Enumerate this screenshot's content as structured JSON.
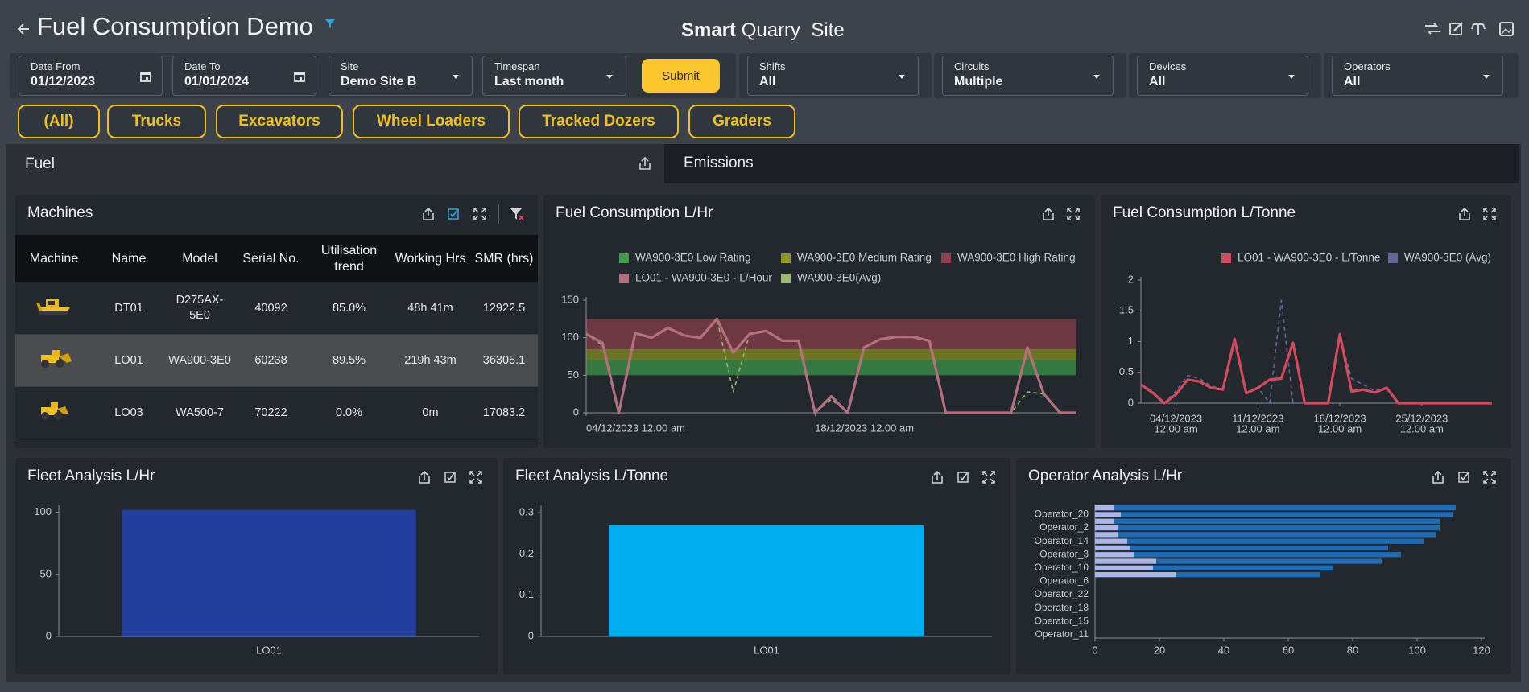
{
  "header": {
    "title": "Fuel Consumption Demo",
    "brand": [
      "Smart",
      "Quarry",
      "Site"
    ]
  },
  "filters": [
    {
      "label": "Date From",
      "value": "01/12/2023"
    },
    {
      "label": "Date To",
      "value": "01/01/2024"
    },
    {
      "label": "Site",
      "value": "Demo Site B"
    },
    {
      "label": "Timespan",
      "value": "Last month"
    },
    {
      "label": "Shifts",
      "value": "All"
    },
    {
      "label": "Circuits",
      "value": "Multiple"
    },
    {
      "label": "Devices",
      "value": "All"
    },
    {
      "label": "Operators",
      "value": "All"
    }
  ],
  "submit": "Submit",
  "machine_types": [
    "(All)",
    "Trucks",
    "Excavators",
    "Wheel Loaders",
    "Tracked Dozers",
    "Graders"
  ],
  "tabs": [
    "Fuel",
    "Emissions"
  ],
  "machines": {
    "title": "Machines",
    "columns": [
      "Machine",
      "Name",
      "Model",
      "Serial No.",
      "Utilisation trend",
      "Working Hrs",
      "SMR (hrs)"
    ],
    "rows": [
      [
        "DT01",
        "D275AX-5E0",
        "40092",
        "85.0%",
        "48h 41m",
        "12922.5"
      ],
      [
        "LO01",
        "WA900-3E0",
        "60238",
        "89.5%",
        "219h 43m",
        "36305.1"
      ],
      [
        "LO03",
        "WA500-7",
        "70222",
        "0.0%",
        "0m",
        "17083.2"
      ]
    ]
  },
  "chart_data": [
    {
      "type": "line",
      "title": "Fuel Consumption L/Hr",
      "x": [
        "2023-12-04T00:00",
        "2023-12-05T00:00",
        "2023-12-06T00:00",
        "2023-12-07T00:00",
        "2023-12-08T00:00",
        "2023-12-09T00:00",
        "2023-12-10T00:00",
        "2023-12-11T00:00",
        "2023-12-12T00:00",
        "2023-12-13T00:00",
        "2023-12-14T00:00",
        "2023-12-15T00:00",
        "2023-12-16T00:00",
        "2023-12-17T00:00",
        "2023-12-18T00:00",
        "2023-12-19T00:00",
        "2023-12-20T00:00",
        "2023-12-21T00:00",
        "2023-12-22T00:00",
        "2023-12-23T00:00",
        "2023-12-24T00:00",
        "2023-12-25T00:00",
        "2023-12-26T00:00",
        "2023-12-27T00:00",
        "2023-12-28T00:00",
        "2023-12-29T00:00",
        "2023-12-30T00:00",
        "2023-12-31T00:00",
        "2024-01-01T00:00",
        "2024-01-02T00:00",
        "2024-01-03T00:00"
      ],
      "xlim": [
        "2023-12-04T00:00",
        "2024-01-03T00:00"
      ],
      "xticks": [
        {
          "value": "2023-12-04T00:00",
          "label": "04/12/2023 12.00 am"
        },
        {
          "value": "2023-12-18T00:00",
          "label": "18/12/2023 12.00 am"
        }
      ],
      "ylim": [
        0,
        150
      ],
      "yticks": [
        0,
        50,
        100,
        150
      ],
      "bands": [
        {
          "name": "WA900-3E0 Low Rating",
          "color": "#3f9a4a",
          "range": [
            50,
            70
          ]
        },
        {
          "name": "WA900-3E0 Medium Rating",
          "color": "#8c951f",
          "range": [
            70,
            85
          ]
        },
        {
          "name": "WA900-3E0 High Rating",
          "color": "#8e3f4b",
          "range": [
            85,
            125
          ]
        }
      ],
      "series": [
        {
          "name": "LO01 - WA900-3E0 - L/Hour",
          "color": "#b5707f",
          "values": [
            105,
            93,
            0,
            106,
            100,
            113,
            103,
            100,
            125,
            80,
            105,
            109,
            96,
            96,
            0,
            22,
            0,
            87,
            98,
            101,
            101,
            96,
            0,
            0,
            0,
            0,
            0,
            87,
            25,
            0,
            0
          ]
        },
        {
          "name": "WA900-3E0(Avg)",
          "color": "#9ab86e",
          "dashed": true,
          "values": [
            105,
            90,
            0,
            106,
            100,
            113,
            103,
            100,
            125,
            28,
            105,
            109,
            96,
            96,
            0,
            18,
            0,
            87,
            98,
            101,
            101,
            96,
            0,
            0,
            0,
            0,
            0,
            28,
            25,
            0,
            0
          ]
        }
      ]
    },
    {
      "type": "line",
      "title": "Fuel Consumption L/Tonne",
      "x": [
        "2023-12-01T00:00",
        "2023-12-02T00:00",
        "2023-12-03T00:00",
        "2023-12-04T00:00",
        "2023-12-05T00:00",
        "2023-12-06T00:00",
        "2023-12-07T00:00",
        "2023-12-08T00:00",
        "2023-12-09T00:00",
        "2023-12-10T00:00",
        "2023-12-11T00:00",
        "2023-12-12T00:00",
        "2023-12-13T00:00",
        "2023-12-14T00:00",
        "2023-12-15T00:00",
        "2023-12-16T00:00",
        "2023-12-17T00:00",
        "2023-12-18T00:00",
        "2023-12-19T00:00",
        "2023-12-20T00:00",
        "2023-12-21T00:00",
        "2023-12-22T00:00",
        "2023-12-23T00:00",
        "2023-12-24T00:00",
        "2023-12-25T00:00",
        "2023-12-26T00:00",
        "2023-12-27T00:00",
        "2023-12-28T00:00",
        "2023-12-29T00:00",
        "2023-12-30T00:00",
        "2023-12-31T00:00"
      ],
      "xlim": [
        "2023-12-01T00:00",
        "2023-12-31T00:00"
      ],
      "xticks": [
        {
          "value": "2023-12-04T00:00",
          "label": [
            "04/12/2023",
            "12.00 am"
          ]
        },
        {
          "value": "2023-12-11T00:00",
          "label": [
            "11/12/2023",
            "12.00 am"
          ]
        },
        {
          "value": "2023-12-18T00:00",
          "label": [
            "18/12/2023",
            "12.00 am"
          ]
        },
        {
          "value": "2023-12-25T00:00",
          "label": [
            "25/12/2023",
            "12.00 am"
          ]
        }
      ],
      "ylim": [
        0,
        2
      ],
      "yticks": [
        0,
        0.5,
        1,
        1.5,
        2
      ],
      "series": [
        {
          "name": "LO01 - WA900-3E0 - L/Tonne",
          "color": "#d44a5c",
          "values": [
            0.3,
            0.17,
            0,
            0.14,
            0.38,
            0.35,
            0.25,
            0.22,
            1.04,
            0.16,
            0.25,
            0.38,
            0.4,
            0.98,
            0,
            0,
            0,
            1.12,
            0.19,
            0.22,
            0.17,
            0.25,
            0,
            0,
            0,
            0,
            0,
            0,
            0,
            0,
            0
          ]
        },
        {
          "name": "WA900-3E0 (Avg)",
          "color": "#62689a",
          "dashed": true,
          "values": [
            0.3,
            0.2,
            0,
            0.2,
            0.45,
            0.4,
            0.28,
            0.22,
            1.0,
            0.16,
            0.25,
            0,
            1.67,
            0,
            0,
            0,
            0,
            1.1,
            0.4,
            0.3,
            0.2,
            0.25,
            0,
            0,
            0,
            0,
            0,
            0,
            0,
            0,
            0
          ]
        }
      ]
    },
    {
      "type": "bar",
      "title": "Fleet Analysis L/Hr",
      "categories": [
        "LO01"
      ],
      "values": [
        102
      ],
      "color": "#233f9e",
      "ylim": [
        0,
        103
      ],
      "yticks": [
        0,
        50,
        100
      ]
    },
    {
      "type": "bar",
      "title": "Fleet Analysis L/Tonne",
      "categories": [
        "LO01"
      ],
      "values": [
        0.27
      ],
      "color": "#00aeef",
      "ylim": [
        0,
        0.31
      ],
      "yticks": [
        0,
        0.1,
        0.2,
        0.3
      ]
    },
    {
      "type": "hbar",
      "stacked": true,
      "title": "Operator Analysis L/Hr",
      "categories": [
        null,
        "Operator_20",
        null,
        "Operator_2",
        null,
        "Operator_14",
        null,
        "Operator_3",
        null,
        "Operator_10",
        null,
        "Operator_6",
        null,
        "Operator_22",
        null,
        "Operator_18",
        null,
        "Operator_15",
        null,
        "Operator_11"
      ],
      "series": [
        {
          "color": "#aab6e6",
          "values": [
            6,
            8,
            6,
            7,
            7,
            10,
            11,
            12,
            19,
            18,
            25,
            0,
            0,
            0,
            0,
            0,
            0,
            0,
            0,
            0
          ]
        },
        {
          "color": "#1c6cb6",
          "values": [
            106,
            103,
            101,
            100,
            99,
            92,
            80,
            83,
            70,
            56,
            45,
            0,
            0,
            0,
            0,
            0,
            0,
            0,
            0,
            0
          ]
        }
      ],
      "xlim": [
        0,
        121
      ],
      "xticks": [
        0,
        20,
        40,
        60,
        80,
        100,
        120
      ]
    }
  ]
}
